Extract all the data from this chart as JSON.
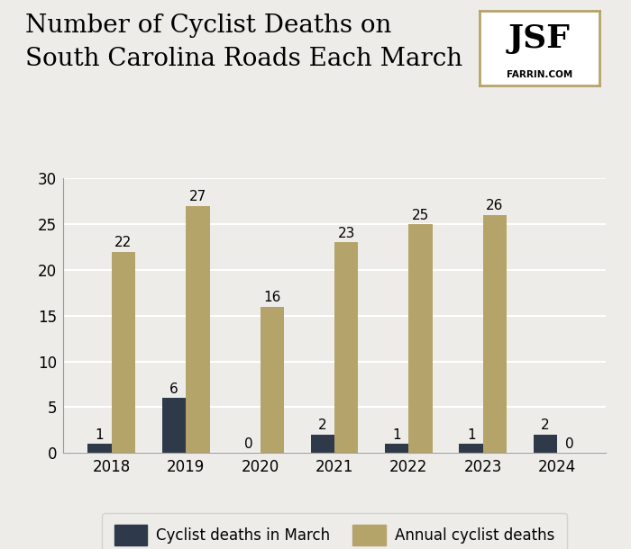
{
  "title_line1": "Number of Cyclist Deaths on",
  "title_line2": "South Carolina Roads Each March",
  "years": [
    2018,
    2019,
    2020,
    2021,
    2022,
    2023,
    2024
  ],
  "march_deaths": [
    1,
    6,
    0,
    2,
    1,
    1,
    2
  ],
  "annual_deaths": [
    22,
    27,
    16,
    23,
    25,
    26,
    0
  ],
  "march_color": "#2e3a4a",
  "annual_color": "#b5a46a",
  "background_color": "#eeece8",
  "ylim": [
    0,
    30
  ],
  "yticks": [
    0,
    5,
    10,
    15,
    20,
    25,
    30
  ],
  "legend_march_label": "Cyclist deaths in March",
  "legend_annual_label": "Annual cyclist deaths",
  "title_fontsize": 20,
  "tick_fontsize": 12,
  "label_fontsize": 11,
  "bar_width": 0.32,
  "grid_color": "#ffffff",
  "logo_text": "JSF",
  "logo_subtext": "FARRIN.COM",
  "logo_border_color": "#b5a46a"
}
